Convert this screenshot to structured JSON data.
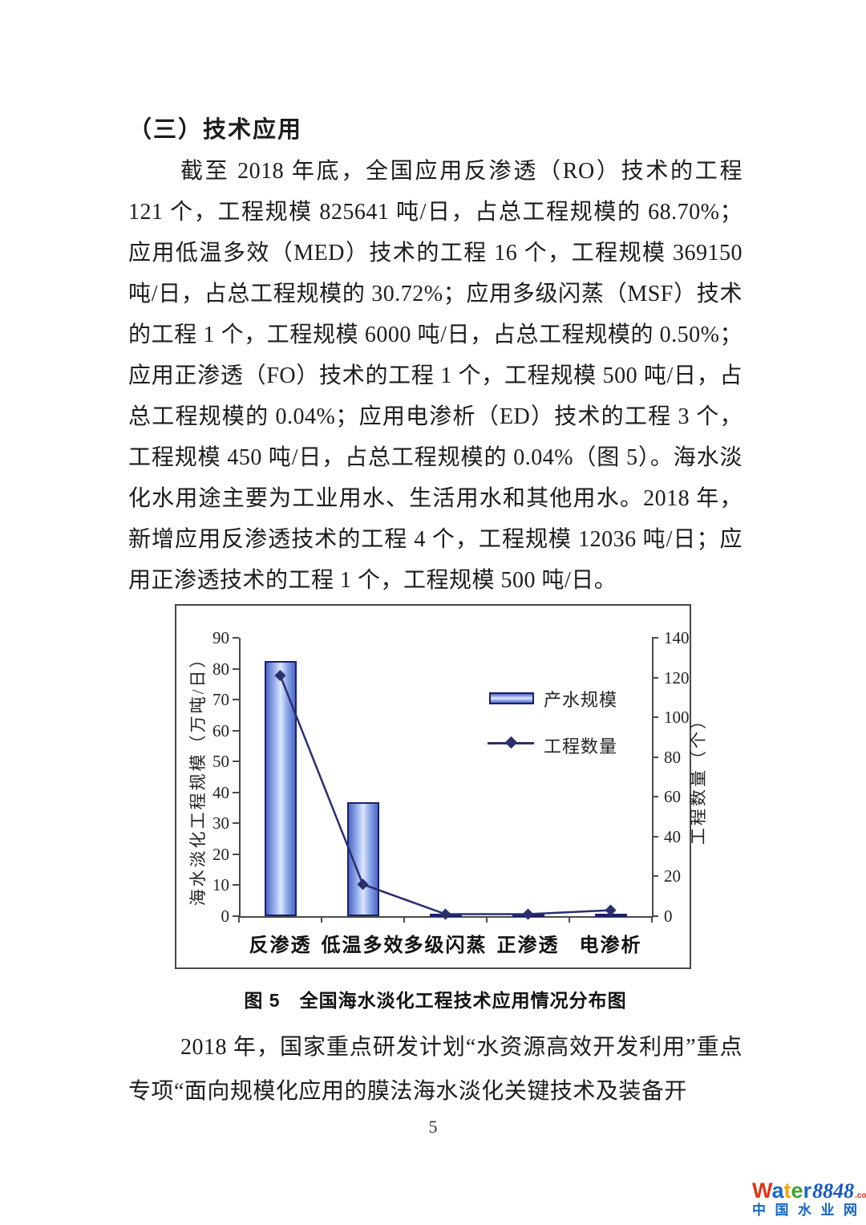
{
  "page": {
    "number": "5"
  },
  "document": {
    "heading": "（三）技术应用",
    "paragraph1": "截至 2018 年底，全国应用反渗透（RO）技术的工程 121 个，工程规模 825641 吨/日，占总工程规模的 68.70%；应用低温多效（MED）技术的工程 16 个，工程规模 369150 吨/日，占总工程规模的 30.72%；应用多级闪蒸（MSF）技术的工程 1 个，工程规模 6000 吨/日，占总工程规模的 0.50%；应用正渗透（FO）技术的工程 1 个，工程规模 500 吨/日，占总工程规模的 0.04%；应用电渗析（ED）技术的工程 3 个，工程规模 450 吨/日，占总工程规模的 0.04%（图 5）。海水淡化水用途主要为工业用水、生活用水和其他用水。2018 年，新增应用反渗透技术的工程 4 个，工程规模 12036 吨/日；应用正渗透技术的工程 1 个，工程规模 500 吨/日。",
    "figure_caption": "图 5　全国海水淡化工程技术应用情况分布图",
    "paragraph2": "2018 年，国家重点研发计划“水资源高效开发利用”重点专项“面向规模化应用的膜法海水淡化关键技术及装备开"
  },
  "chart_data": {
    "type": "bar+line combo",
    "categories": [
      "反渗透",
      "低温多效",
      "多级闪蒸",
      "正渗透",
      "电渗析"
    ],
    "series": [
      {
        "name": "产水规模",
        "type": "bar",
        "axis": "left",
        "unit": "万吨/日",
        "values": [
          82.56,
          36.92,
          0.6,
          0.05,
          0.045
        ]
      },
      {
        "name": "工程数量",
        "type": "line",
        "axis": "right",
        "unit": "个",
        "values": [
          121,
          16,
          1,
          1,
          3
        ]
      }
    ],
    "left_axis": {
      "label": "海水淡化工程规模（万吨/日）",
      "min": 0,
      "max": 90,
      "step": 10
    },
    "right_axis": {
      "label": "工程数量（个）",
      "min": 0,
      "max": 140,
      "step": 20
    },
    "legend_position": "inside-upper-right",
    "grid": false,
    "colors": {
      "bar_border": "#1a206e",
      "bar_fill_edge": "#4e68c8",
      "bar_fill_center": "#dde8fd",
      "line": "#2b2f70",
      "axis": "#4a4a4a"
    }
  },
  "footer": {
    "logo": {
      "letters": [
        {
          "ch": "W",
          "color": "#e03418"
        },
        {
          "ch": "a",
          "color": "#1868c9"
        },
        {
          "ch": "t",
          "color": "#f7a600"
        },
        {
          "ch": "e",
          "color": "#3fa32e"
        },
        {
          "ch": "r",
          "color": "#1868c9"
        }
      ],
      "number": "8848",
      "tld": ".com",
      "tagline": "中国水业网"
    }
  }
}
